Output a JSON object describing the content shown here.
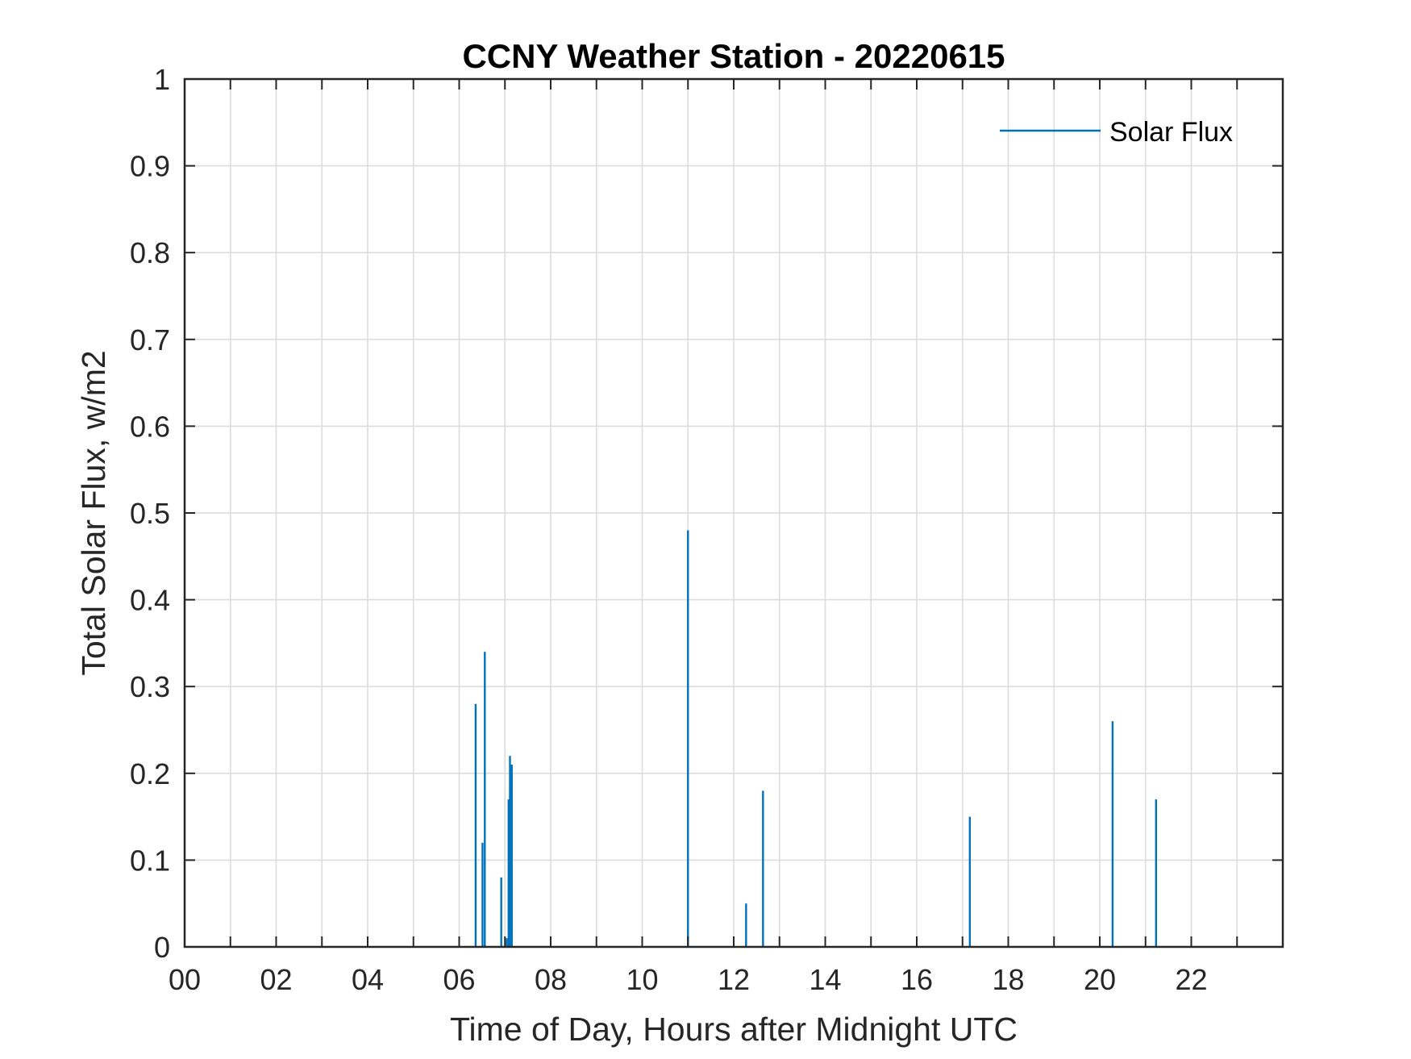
{
  "chart_data": {
    "type": "bar",
    "title": "CCNY Weather Station - 20220615",
    "xlabel": "Time of Day, Hours after Midnight UTC",
    "ylabel": "Total Solar Flux, w/m2",
    "xlim": [
      0,
      24
    ],
    "ylim": [
      0,
      1
    ],
    "x_ticks": [
      0,
      2,
      4,
      6,
      8,
      10,
      12,
      14,
      16,
      18,
      20,
      22
    ],
    "x_tick_labels": [
      "00",
      "02",
      "04",
      "06",
      "08",
      "10",
      "12",
      "14",
      "16",
      "18",
      "20",
      "22"
    ],
    "x_minor_grid_step": 1,
    "y_ticks": [
      0,
      0.1,
      0.2,
      0.3,
      0.4,
      0.5,
      0.6,
      0.7,
      0.8,
      0.9,
      1
    ],
    "y_tick_labels": [
      "0",
      "0.1",
      "0.2",
      "0.3",
      "0.4",
      "0.5",
      "0.6",
      "0.7",
      "0.8",
      "0.9",
      "1"
    ],
    "grid": true,
    "legend": {
      "placement": "top-right",
      "entries": [
        "Solar Flux"
      ]
    },
    "series": [
      {
        "name": "Solar Flux",
        "color": "#0072bd",
        "x": [
          6.36,
          6.51,
          6.56,
          6.92,
          7.04,
          7.08,
          7.11,
          7.15,
          11.0,
          12.27,
          12.64,
          17.16,
          20.28,
          21.23
        ],
        "values": [
          0.28,
          0.12,
          0.34,
          0.08,
          0.01,
          0.17,
          0.22,
          0.21,
          0.48,
          0.05,
          0.18,
          0.15,
          0.26,
          0.17
        ]
      }
    ],
    "colors": {
      "axis": "#262626",
      "grid": "#dcdcdc",
      "title": "#000000"
    }
  }
}
